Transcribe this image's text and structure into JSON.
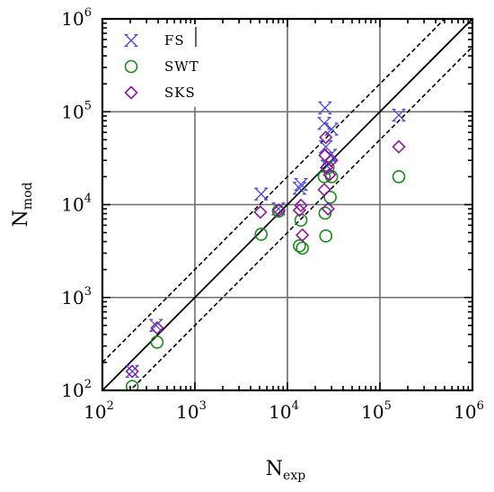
{
  "chart_data": {
    "type": "scatter",
    "xscale": "log",
    "yscale": "log",
    "xlim": [
      100,
      1000000
    ],
    "ylim": [
      100,
      1000000
    ],
    "grid": true,
    "legend_position": "top-left",
    "xlabel": {
      "main": "N",
      "sub": "exp"
    },
    "ylabel": {
      "main": "N",
      "sub": "mod"
    },
    "tick_labels": [
      {
        "base": "10",
        "exp": "2"
      },
      {
        "base": "10",
        "exp": "3"
      },
      {
        "base": "10",
        "exp": "4"
      },
      {
        "base": "10",
        "exp": "5"
      },
      {
        "base": "10",
        "exp": "6"
      }
    ],
    "reference_lines": [
      {
        "style": "solid",
        "factor": 1
      },
      {
        "style": "dashed",
        "factor": 2
      },
      {
        "style": "dashed",
        "factor": 0.5
      }
    ],
    "series": [
      {
        "name": "FS",
        "marker": "x",
        "color": "#4a4ae0",
        "points": [
          [
            210,
            160
          ],
          [
            380,
            500
          ],
          [
            5200,
            13000
          ],
          [
            8000,
            9000
          ],
          [
            13500,
            15000
          ],
          [
            14000,
            16500
          ],
          [
            25000,
            75000
          ],
          [
            25500,
            110000
          ],
          [
            26000,
            42000
          ],
          [
            27000,
            26000
          ],
          [
            29000,
            34000
          ],
          [
            30000,
            65000
          ],
          [
            160000,
            92000
          ]
        ]
      },
      {
        "name": "SWT",
        "marker": "circle",
        "color": "#1a8a1a",
        "points": [
          [
            210,
            110
          ],
          [
            390,
            330
          ],
          [
            5200,
            4800
          ],
          [
            8000,
            8500
          ],
          [
            13500,
            3600
          ],
          [
            14000,
            6800
          ],
          [
            14500,
            3400
          ],
          [
            25000,
            20000
          ],
          [
            25500,
            8100
          ],
          [
            26000,
            4600
          ],
          [
            27500,
            25000
          ],
          [
            29000,
            12000
          ],
          [
            30000,
            20000
          ],
          [
            160000,
            20000
          ]
        ]
      },
      {
        "name": "SKS",
        "marker": "diamond",
        "color": "#8a1a9a",
        "points": [
          [
            210,
            160
          ],
          [
            390,
            470
          ],
          [
            5100,
            8300
          ],
          [
            8100,
            8700
          ],
          [
            13500,
            8700
          ],
          [
            14000,
            9800
          ],
          [
            14500,
            4700
          ],
          [
            25000,
            14500
          ],
          [
            25500,
            34000
          ],
          [
            26000,
            53000
          ],
          [
            26500,
            25000
          ],
          [
            27500,
            9000
          ],
          [
            28500,
            21000
          ],
          [
            30000,
            30000
          ],
          [
            160000,
            42000
          ]
        ]
      }
    ]
  }
}
